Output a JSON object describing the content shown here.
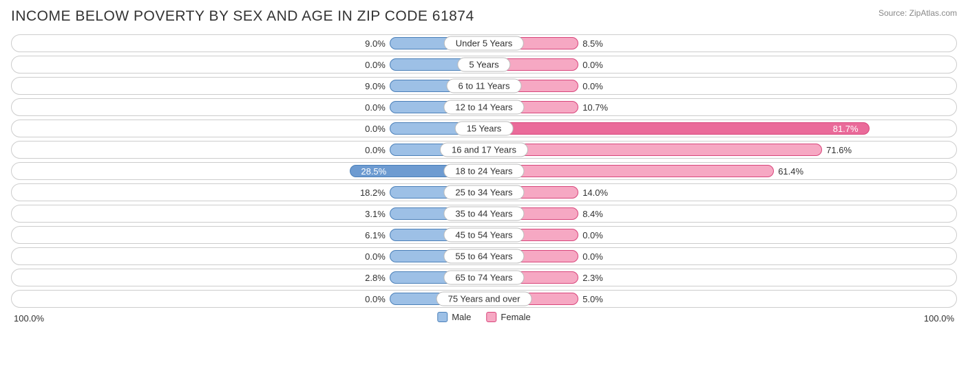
{
  "header": {
    "title": "INCOME BELOW POVERTY BY SEX AND AGE IN ZIP CODE 61874",
    "source": "Source: ZipAtlas.com"
  },
  "chart": {
    "type": "diverging-bar",
    "axis_max": 100.0,
    "axis_left_label": "100.0%",
    "axis_right_label": "100.0%",
    "min_bar_pct": 20,
    "colors": {
      "male_fill": "#9dc0e6",
      "male_border": "#4a7fb8",
      "female_fill": "#f6a8c3",
      "female_border": "#d8447a",
      "male_highlight": "#6d9bd1",
      "female_highlight": "#ea6b9a",
      "track_border": "#cccccc",
      "text": "#303030",
      "title_text": "#333333",
      "source_text": "#888888",
      "background": "#ffffff"
    },
    "legend": {
      "male": "Male",
      "female": "Female"
    },
    "rows": [
      {
        "category": "Under 5 Years",
        "male": 9.0,
        "female": 8.5
      },
      {
        "category": "5 Years",
        "male": 0.0,
        "female": 0.0
      },
      {
        "category": "6 to 11 Years",
        "male": 9.0,
        "female": 0.0
      },
      {
        "category": "12 to 14 Years",
        "male": 0.0,
        "female": 10.7
      },
      {
        "category": "15 Years",
        "male": 0.0,
        "female": 81.7
      },
      {
        "category": "16 and 17 Years",
        "male": 0.0,
        "female": 71.6
      },
      {
        "category": "18 to 24 Years",
        "male": 28.5,
        "female": 61.4
      },
      {
        "category": "25 to 34 Years",
        "male": 18.2,
        "female": 14.0
      },
      {
        "category": "35 to 44 Years",
        "male": 3.1,
        "female": 8.4
      },
      {
        "category": "45 to 54 Years",
        "male": 6.1,
        "female": 0.0
      },
      {
        "category": "55 to 64 Years",
        "male": 0.0,
        "female": 0.0
      },
      {
        "category": "65 to 74 Years",
        "male": 2.8,
        "female": 2.3
      },
      {
        "category": "75 Years and over",
        "male": 0.0,
        "female": 5.0
      }
    ]
  }
}
